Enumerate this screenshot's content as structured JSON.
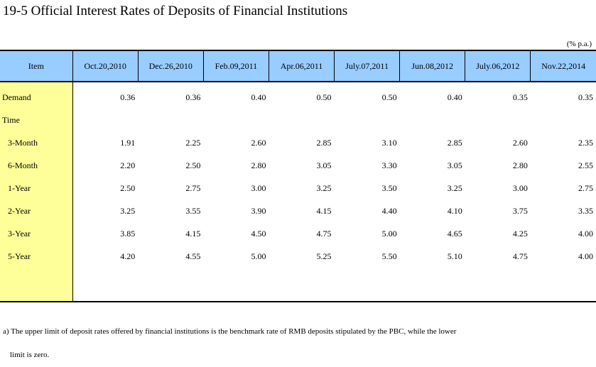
{
  "title": "19-5  Official Interest Rates of Deposits of Financial Institutions",
  "unit": "(% p.a.)",
  "table": {
    "item_header": "Item",
    "dates": [
      "Oct.20,2010",
      "Dec.26,2010",
      "Feb.09,2011",
      "Apr.06,2011",
      "July.07,2011",
      "Jun.08,2012",
      "July.06,2012",
      "Nov.22,2014"
    ],
    "rows": [
      {
        "label": "Demand",
        "values": [
          "0.36",
          "0.36",
          "0.40",
          "0.50",
          "0.50",
          "0.40",
          "0.35",
          "0.35"
        ]
      },
      {
        "label": "Time",
        "values": [
          "",
          "",
          "",
          "",
          "",
          "",
          "",
          ""
        ]
      },
      {
        "label": "3-Month",
        "values": [
          "1.91",
          "2.25",
          "2.60",
          "2.85",
          "3.10",
          "2.85",
          "2.60",
          "2.35"
        ]
      },
      {
        "label": "6-Month",
        "values": [
          "2.20",
          "2.50",
          "2.80",
          "3.05",
          "3.30",
          "3.05",
          "2.80",
          "2.55"
        ]
      },
      {
        "label": "1-Year",
        "values": [
          "2.50",
          "2.75",
          "3.00",
          "3.25",
          "3.50",
          "3.25",
          "3.00",
          "2.75"
        ]
      },
      {
        "label": "2-Year",
        "values": [
          "3.25",
          "3.55",
          "3.90",
          "4.15",
          "4.40",
          "4.10",
          "3.75",
          "3.35"
        ]
      },
      {
        "label": "3-Year",
        "values": [
          "3.85",
          "4.15",
          "4.50",
          "4.75",
          "5.00",
          "4.65",
          "4.25",
          "4.00"
        ]
      },
      {
        "label": "5-Year",
        "values": [
          "4.20",
          "4.55",
          "5.00",
          "5.25",
          "5.50",
          "5.10",
          "4.75",
          "4.00"
        ]
      }
    ]
  },
  "note": {
    "line1": "a) The upper limit of deposit rates offered by financial institutions is the benchmark rate of RMB deposits stipulated by the PBC, while the lower",
    "line2": "limit is zero."
  }
}
